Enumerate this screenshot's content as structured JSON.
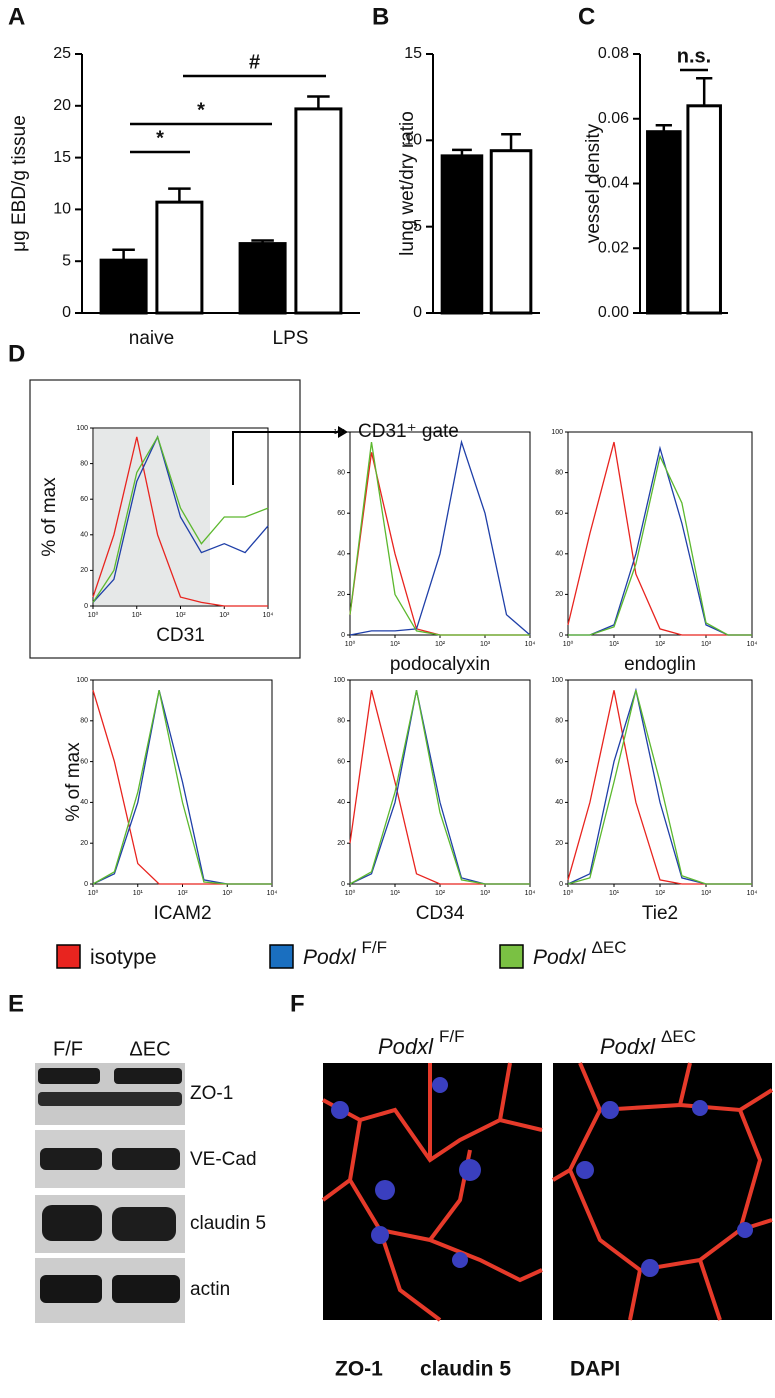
{
  "panel_labels": [
    "A",
    "B",
    "C",
    "D",
    "E",
    "F"
  ],
  "chart_data": [
    {
      "type": "bar",
      "y_label": "μg EBD/g tissue",
      "categories": [
        "naive",
        "LPS"
      ],
      "ylim": [
        0,
        25
      ],
      "yticks": [
        0,
        5,
        10,
        15,
        20,
        25
      ],
      "series": [
        {
          "color": "#000000",
          "values": [
            5.1,
            6.7
          ],
          "errors": [
            1.0,
            0.3
          ]
        },
        {
          "color": "#ffffff",
          "values": [
            10.7,
            19.7
          ],
          "errors": [
            1.3,
            1.2
          ]
        }
      ],
      "annotations": [
        "*",
        "*",
        "#"
      ]
    },
    {
      "type": "bar",
      "y_label": "lung wet/dry ratio",
      "ylim": [
        0,
        15
      ],
      "yticks": [
        0,
        5,
        10,
        15
      ],
      "series": [
        {
          "color": "#000000",
          "values": [
            9.1
          ],
          "errors": [
            0.35
          ]
        },
        {
          "color": "#ffffff",
          "values": [
            9.4
          ],
          "errors": [
            0.95
          ]
        }
      ]
    },
    {
      "type": "bar",
      "y_label": "vessel density",
      "ylim": [
        0,
        0.08
      ],
      "yticks": [
        {
          "value": 0,
          "label": "0.00"
        },
        {
          "value": 0.02,
          "label": "0.02"
        },
        {
          "value": 0.04,
          "label": "0.04"
        },
        {
          "value": 0.06,
          "label": "0.06"
        },
        {
          "value": 0.08,
          "label": "0.08"
        }
      ],
      "series": [
        {
          "color": "#000000",
          "values": [
            0.056
          ],
          "errors": [
            0.002
          ]
        },
        {
          "color": "#ffffff",
          "values": [
            0.064
          ],
          "errors": [
            0.0085
          ]
        }
      ],
      "annotations": [
        "n.s."
      ]
    },
    {
      "type": "line",
      "xscale": "log",
      "y_label": "% of max",
      "x_label": "CD31",
      "xlim": [
        1,
        10000
      ],
      "ylim": [
        0,
        100
      ],
      "xticks": [
        {
          "value": 1,
          "label": "10⁰"
        },
        {
          "value": 10,
          "label": "10¹"
        },
        {
          "value": 100,
          "label": "10²"
        },
        {
          "value": 1000,
          "label": "10³"
        },
        {
          "value": 10000,
          "label": "10⁴"
        }
      ],
      "yticks": [
        0,
        20,
        40,
        60,
        80,
        100
      ],
      "x": [
        1,
        3,
        10,
        30,
        100,
        300,
        1000,
        3000,
        10000
      ],
      "series": [
        {
          "color": "#e8241f",
          "values": [
            5,
            40,
            95,
            40,
            5,
            2,
            0,
            0,
            0
          ]
        },
        {
          "color": "#1f3fa8",
          "values": [
            2,
            15,
            70,
            95,
            50,
            30,
            35,
            30,
            45
          ]
        },
        {
          "color": "#5cb82e",
          "values": [
            2,
            20,
            75,
            95,
            55,
            35,
            50,
            50,
            55
          ]
        }
      ]
    },
    {
      "type": "line",
      "xscale": "log",
      "x_label": "podocalyxin",
      "xlim": [
        1,
        10000
      ],
      "ylim": [
        0,
        100
      ],
      "xticks": [
        {
          "value": 1,
          "label": "10⁰"
        },
        {
          "value": 10,
          "label": "10¹"
        },
        {
          "value": 100,
          "label": "10²"
        },
        {
          "value": 1000,
          "label": "10³"
        },
        {
          "value": 10000,
          "label": "10⁴"
        }
      ],
      "yticks": [
        0,
        20,
        40,
        60,
        80,
        100
      ],
      "x": [
        1,
        3,
        10,
        30,
        100,
        300,
        1000,
        3000,
        10000
      ],
      "series": [
        {
          "color": "#e8241f",
          "values": [
            10,
            90,
            40,
            3,
            0,
            0,
            0,
            0,
            0
          ]
        },
        {
          "color": "#1f3fa8",
          "values": [
            0,
            2,
            2,
            3,
            40,
            95,
            60,
            10,
            0
          ]
        },
        {
          "color": "#5cb82e",
          "values": [
            10,
            95,
            20,
            2,
            0,
            0,
            0,
            0,
            0
          ]
        }
      ]
    },
    {
      "type": "line",
      "xscale": "log",
      "x_label": "endoglin",
      "xlim": [
        1,
        10000
      ],
      "ylim": [
        0,
        100
      ],
      "xticks": [
        {
          "value": 1,
          "label": "10⁰"
        },
        {
          "value": 10,
          "label": "10¹"
        },
        {
          "value": 100,
          "label": "10²"
        },
        {
          "value": 1000,
          "label": "10³"
        },
        {
          "value": 10000,
          "label": "10⁴"
        }
      ],
      "yticks": [
        0,
        20,
        40,
        60,
        80,
        100
      ],
      "x": [
        1,
        3,
        10,
        30,
        100,
        300,
        1000,
        3000,
        10000
      ],
      "series": [
        {
          "color": "#e8241f",
          "values": [
            5,
            50,
            95,
            30,
            3,
            0,
            0,
            0,
            0
          ]
        },
        {
          "color": "#1f3fa8",
          "values": [
            0,
            0,
            5,
            40,
            92,
            55,
            5,
            0,
            0
          ]
        },
        {
          "color": "#5cb82e",
          "values": [
            0,
            0,
            4,
            35,
            88,
            65,
            6,
            0,
            0
          ]
        }
      ]
    },
    {
      "type": "line",
      "xscale": "log",
      "y_label": "% of max",
      "x_label": "ICAM2",
      "xlim": [
        1,
        10000
      ],
      "ylim": [
        0,
        100
      ],
      "xticks": [
        {
          "value": 1,
          "label": "10⁰"
        },
        {
          "value": 10,
          "label": "10¹"
        },
        {
          "value": 100,
          "label": "10²"
        },
        {
          "value": 1000,
          "label": "10³"
        },
        {
          "value": 10000,
          "label": "10⁴"
        }
      ],
      "yticks": [
        0,
        20,
        40,
        60,
        80,
        100
      ],
      "x": [
        1,
        3,
        10,
        30,
        100,
        300,
        1000,
        3000,
        10000
      ],
      "series": [
        {
          "color": "#e8241f",
          "values": [
            95,
            60,
            10,
            0,
            0,
            0,
            0,
            0,
            0
          ]
        },
        {
          "color": "#1f3fa8",
          "values": [
            0,
            5,
            40,
            95,
            50,
            2,
            0,
            0,
            0
          ]
        },
        {
          "color": "#5cb82e",
          "values": [
            0,
            6,
            45,
            95,
            40,
            1,
            0,
            0,
            0
          ]
        }
      ]
    },
    {
      "type": "line",
      "xscale": "log",
      "x_label": "CD34",
      "xlim": [
        1,
        10000
      ],
      "ylim": [
        0,
        100
      ],
      "xticks": [
        {
          "value": 1,
          "label": "10⁰"
        },
        {
          "value": 10,
          "label": "10¹"
        },
        {
          "value": 100,
          "label": "10²"
        },
        {
          "value": 1000,
          "label": "10³"
        },
        {
          "value": 10000,
          "label": "10⁴"
        }
      ],
      "yticks": [
        0,
        20,
        40,
        60,
        80,
        100
      ],
      "x": [
        1,
        3,
        10,
        30,
        100,
        300,
        1000,
        3000,
        10000
      ],
      "series": [
        {
          "color": "#e8241f",
          "values": [
            20,
            95,
            50,
            5,
            0,
            0,
            0,
            0,
            0
          ]
        },
        {
          "color": "#1f3fa8",
          "values": [
            0,
            5,
            40,
            95,
            40,
            3,
            0,
            0,
            0
          ]
        },
        {
          "color": "#5cb82e",
          "values": [
            0,
            6,
            45,
            95,
            35,
            2,
            0,
            0,
            0
          ]
        }
      ]
    },
    {
      "type": "line",
      "xscale": "log",
      "x_label": "Tie2",
      "xlim": [
        1,
        10000
      ],
      "ylim": [
        0,
        100
      ],
      "xticks": [
        {
          "value": 1,
          "label": "10⁰"
        },
        {
          "value": 10,
          "label": "10¹"
        },
        {
          "value": 100,
          "label": "10²"
        },
        {
          "value": 1000,
          "label": "10³"
        },
        {
          "value": 10000,
          "label": "10⁴"
        }
      ],
      "yticks": [
        0,
        20,
        40,
        60,
        80,
        100
      ],
      "x": [
        1,
        3,
        10,
        30,
        100,
        300,
        1000,
        3000,
        10000
      ],
      "series": [
        {
          "color": "#e8241f",
          "values": [
            2,
            40,
            95,
            40,
            2,
            0,
            0,
            0,
            0
          ]
        },
        {
          "color": "#1f3fa8",
          "values": [
            0,
            5,
            60,
            95,
            40,
            3,
            0,
            0,
            0
          ]
        },
        {
          "color": "#5cb82e",
          "values": [
            0,
            3,
            50,
            95,
            50,
            4,
            0,
            0,
            0
          ]
        }
      ]
    }
  ],
  "gate_label": "CD31⁺ gate",
  "flow_legend": [
    {
      "label": "isotype",
      "color": "#e8241f"
    },
    {
      "label": "Podxl",
      "superscript": "F/F",
      "color": "#1a6fc0"
    },
    {
      "label": "Podxl",
      "superscript": "ΔEC",
      "color": "#7ac143"
    }
  ],
  "blot": {
    "columns": [
      "F/F",
      "ΔEC"
    ],
    "rows": [
      "ZO-1",
      "VE-Cad",
      "claudin 5",
      "actin"
    ]
  },
  "microscopy": {
    "columns": [
      {
        "label": "Podxl",
        "superscript": "F/F"
      },
      {
        "label": "Podxl",
        "superscript": "ΔEC"
      }
    ],
    "stains": [
      {
        "label": "ZO-1",
        "color": "#2bb673"
      },
      {
        "label": "claudin 5",
        "color": "#e8241f"
      },
      {
        "label": "DAPI",
        "color": "#1a6fc0"
      }
    ]
  }
}
